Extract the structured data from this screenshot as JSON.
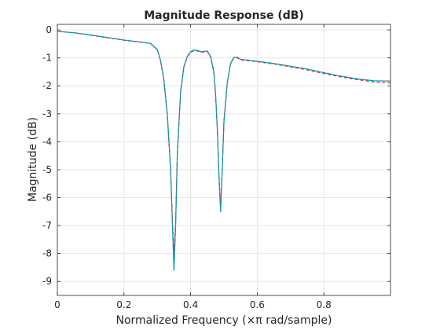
{
  "chart_data": {
    "type": "line",
    "title": "Magnitude Response (dB)",
    "xlabel": "Normalized Frequency (×π rad/sample)",
    "ylabel": "Magnitude (dB)",
    "xlim": [
      0,
      1
    ],
    "ylim": [
      -9.5,
      0.2
    ],
    "xticks": [
      0,
      0.2,
      0.4,
      0.6,
      0.8
    ],
    "xtick_labels": [
      "0",
      "0.2",
      "0.4",
      "0.6",
      "0.8"
    ],
    "yticks": [
      0,
      -1,
      -2,
      -3,
      -4,
      -5,
      -6,
      -7,
      -8,
      -9
    ],
    "ytick_labels": [
      "0",
      "-1",
      "-2",
      "-3",
      "-4",
      "-5",
      "-6",
      "-7",
      "-8",
      "-9"
    ],
    "grid": true,
    "colors": {
      "response": "#0072bd",
      "reference": "#d62728",
      "overlay": "#00a8a8"
    },
    "series": [
      {
        "values_x": [
          0,
          0.05,
          0.1,
          0.15,
          0.2,
          0.25,
          0.28,
          0.3,
          0.31,
          0.32,
          0.33,
          0.34,
          0.345,
          0.35,
          0.355,
          0.36,
          0.37,
          0.38,
          0.39,
          0.4,
          0.41,
          0.42,
          0.43,
          0.44,
          0.45,
          0.46,
          0.47,
          0.475,
          0.48,
          0.485,
          0.49,
          0.495,
          0.5,
          0.51,
          0.52,
          0.53,
          0.54,
          0.55,
          0.6,
          0.65,
          0.7,
          0.75,
          0.8,
          0.85,
          0.9,
          0.95,
          1.0
        ],
        "values_y": [
          -0.05,
          -0.1,
          -0.18,
          -0.27,
          -0.36,
          -0.43,
          -0.48,
          -0.7,
          -1.1,
          -1.8,
          -3.0,
          -5.0,
          -6.8,
          -8.6,
          -7.0,
          -4.5,
          -2.2,
          -1.3,
          -0.95,
          -0.78,
          -0.72,
          -0.73,
          -0.78,
          -0.77,
          -0.75,
          -0.95,
          -1.5,
          -2.3,
          -3.5,
          -5.2,
          -6.5,
          -5.0,
          -3.3,
          -1.9,
          -1.2,
          -0.98,
          -0.98,
          -1.05,
          -1.12,
          -1.2,
          -1.3,
          -1.4,
          -1.53,
          -1.65,
          -1.75,
          -1.82,
          -1.83
        ]
      },
      {
        "values_x": [
          0,
          0.05,
          0.1,
          0.15,
          0.2,
          0.25,
          0.28,
          0.3,
          0.31,
          0.32,
          0.33,
          0.34,
          0.345,
          0.35,
          0.355,
          0.36,
          0.37,
          0.38,
          0.39,
          0.4,
          0.41,
          0.42,
          0.43,
          0.44,
          0.45,
          0.46,
          0.47,
          0.475,
          0.48,
          0.485,
          0.49,
          0.495,
          0.5,
          0.51,
          0.52,
          0.53,
          0.54,
          0.55,
          0.6,
          0.65,
          0.7,
          0.75,
          0.8,
          0.85,
          0.9,
          0.95,
          1.0
        ],
        "values_y": [
          -0.05,
          -0.1,
          -0.19,
          -0.28,
          -0.37,
          -0.44,
          -0.49,
          -0.72,
          -1.12,
          -1.85,
          -3.05,
          -5.1,
          -6.7,
          -7.9,
          -6.9,
          -4.4,
          -2.25,
          -1.32,
          -0.97,
          -0.8,
          -0.74,
          -0.75,
          -0.8,
          -0.79,
          -0.77,
          -0.98,
          -1.55,
          -2.35,
          -3.55,
          -5.1,
          -6.3,
          -4.9,
          -3.25,
          -1.88,
          -1.22,
          -1.0,
          -1.0,
          -1.07,
          -1.14,
          -1.22,
          -1.32,
          -1.43,
          -1.56,
          -1.68,
          -1.78,
          -1.86,
          -1.9
        ]
      }
    ]
  }
}
